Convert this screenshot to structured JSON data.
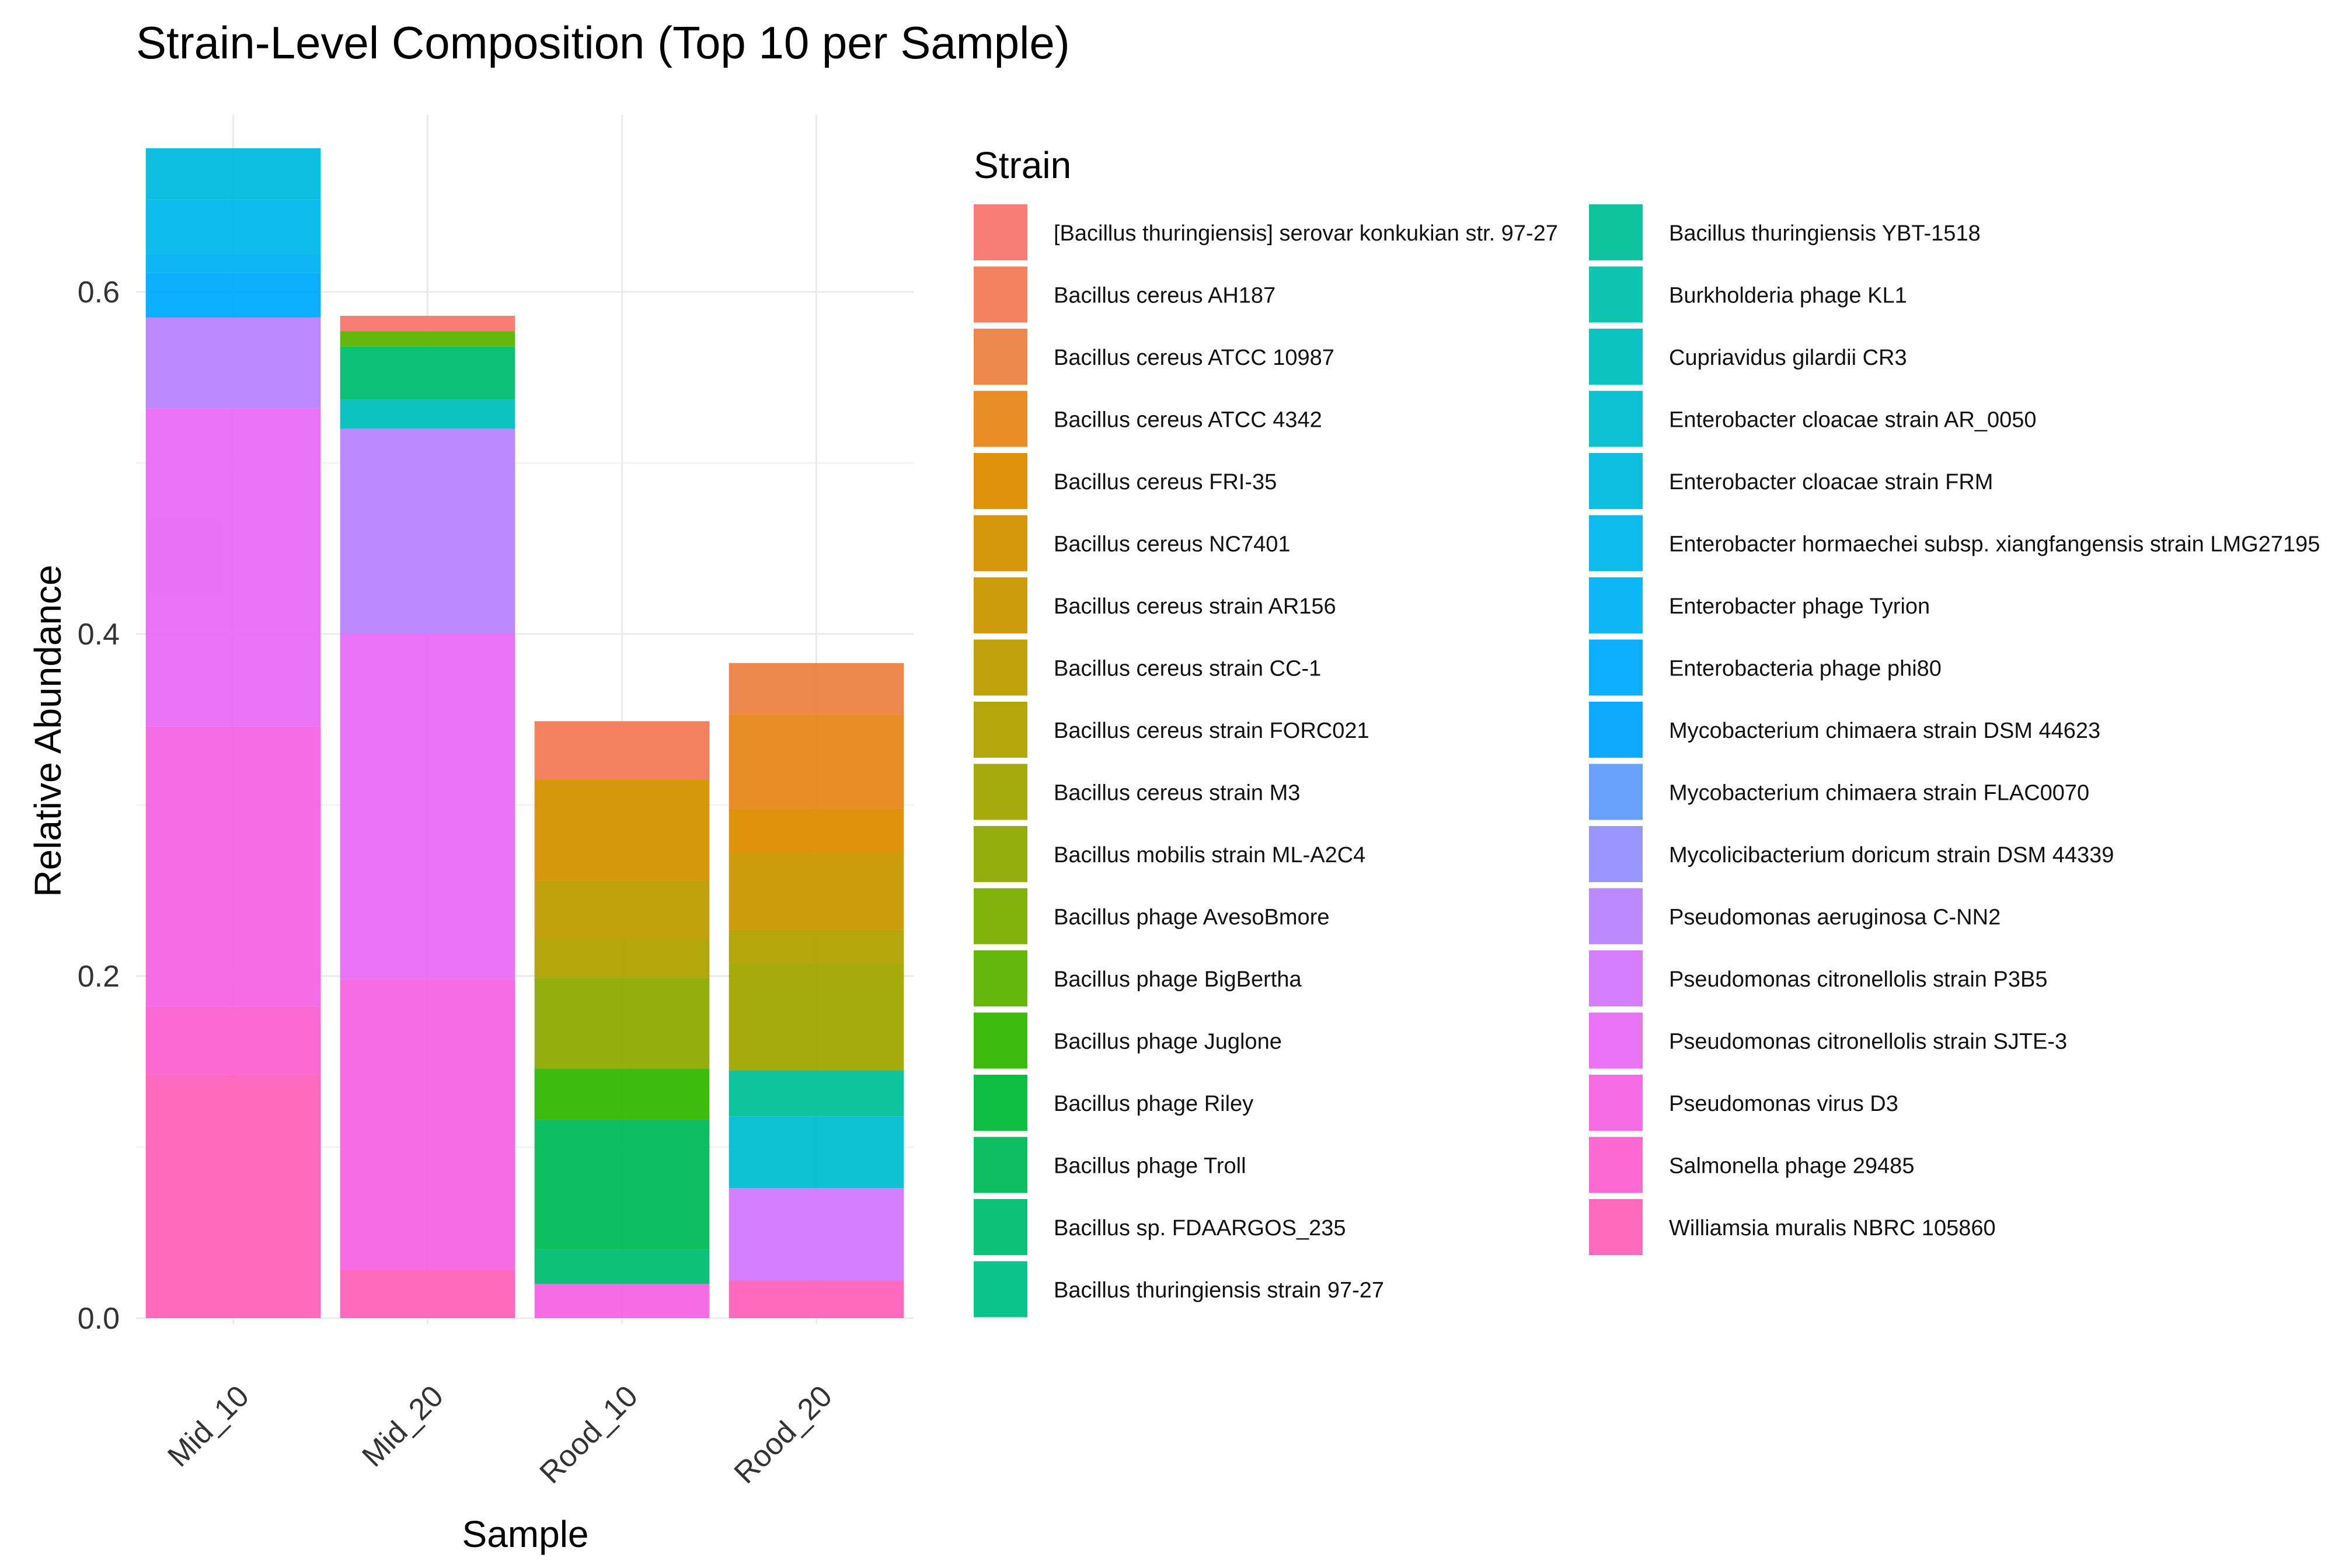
{
  "chart_data": {
    "type": "bar",
    "stacked": true,
    "title": "Strain-Level Composition (Top 10 per Sample)",
    "xlabel": "Sample",
    "ylabel": "Relative Abundance",
    "ylim": [
      0,
      0.6831
    ],
    "yticks": [
      0.0,
      0.2,
      0.4,
      0.6
    ],
    "ytick_labels": [
      "0.0",
      "0.2",
      "0.4",
      "0.6"
    ],
    "grid": true,
    "legend_title": "Strain",
    "legend_position": "right",
    "categories": [
      "Mid_10",
      "Mid_20",
      "Rood_10",
      "Rood_20"
    ],
    "series": [
      {
        "name": "[Bacillus thuringiensis] serovar konkukian str. 97-27",
        "color": "#F8766D",
        "values": [
          0,
          0.009,
          0,
          0
        ]
      },
      {
        "name": "Bacillus cereus AH187",
        "color": "#F37B59",
        "values": [
          0,
          0,
          0.034,
          0
        ]
      },
      {
        "name": "Bacillus cereus ATCC 10987",
        "color": "#ED8141",
        "values": [
          0,
          0,
          0,
          0.03
        ]
      },
      {
        "name": "Bacillus cereus ATCC 4342",
        "color": "#E7861B",
        "values": [
          0,
          0,
          0,
          0.055
        ]
      },
      {
        "name": "Bacillus cereus FRI-35",
        "color": "#DF8C00",
        "values": [
          0,
          0,
          0,
          0.026
        ]
      },
      {
        "name": "Bacillus cereus NC7401",
        "color": "#D59100",
        "values": [
          0,
          0,
          0.059,
          0
        ]
      },
      {
        "name": "Bacillus cereus strain AR156",
        "color": "#CA9700",
        "values": [
          0,
          0,
          0,
          0.045
        ]
      },
      {
        "name": "Bacillus cereus strain CC-1",
        "color": "#BE9C00",
        "values": [
          0,
          0,
          0.034,
          0
        ]
      },
      {
        "name": "Bacillus cereus strain FORC021",
        "color": "#B0A100",
        "values": [
          0,
          0,
          0.023,
          0.02
        ]
      },
      {
        "name": "Bacillus cereus strain M3",
        "color": "#A0A600",
        "values": [
          0,
          0,
          0,
          0.062
        ]
      },
      {
        "name": "Bacillus mobilis strain ML-A2C4",
        "color": "#8EAB00",
        "values": [
          0,
          0,
          0.053,
          0
        ]
      },
      {
        "name": "Bacillus phage AvesoBmore",
        "color": "#7AAF00",
        "values": [
          0,
          0,
          0,
          0
        ]
      },
      {
        "name": "Bacillus phage BigBertha",
        "color": "#5EB300",
        "values": [
          0,
          0.009,
          0,
          0
        ]
      },
      {
        "name": "Bacillus phage Juglone",
        "color": "#33B600",
        "values": [
          0,
          0,
          0.03,
          0
        ]
      },
      {
        "name": "Bacillus phage Riley",
        "color": "#00BA38",
        "values": [
          0,
          0,
          0,
          0
        ]
      },
      {
        "name": "Bacillus phage Troll",
        "color": "#00BC59",
        "values": [
          0,
          0,
          0.076,
          0
        ]
      },
      {
        "name": "Bacillus sp. FDAARGOS_235",
        "color": "#00BE70",
        "values": [
          0,
          0.031,
          0.02,
          0
        ]
      },
      {
        "name": "Bacillus thuringiensis strain 97-27",
        "color": "#00C086",
        "values": [
          0,
          0,
          0,
          0
        ]
      },
      {
        "name": "Bacillus thuringiensis YBT-1518",
        "color": "#00C19A",
        "values": [
          0,
          0,
          0,
          0.027
        ]
      },
      {
        "name": "Burkholderia phage KL1",
        "color": "#00C1AD",
        "values": [
          0,
          0,
          0,
          0
        ]
      },
      {
        "name": "Cupriavidus gilardii CR3",
        "color": "#00C0BF",
        "values": [
          0,
          0.017,
          0,
          0
        ]
      },
      {
        "name": "Enterobacter cloacae strain AR_0050",
        "color": "#00BED0",
        "values": [
          0,
          0,
          0,
          0.042
        ]
      },
      {
        "name": "Enterobacter cloacae strain FRM",
        "color": "#00BBDF",
        "values": [
          0.03,
          0,
          0,
          0
        ]
      },
      {
        "name": "Enterobacter hormaechei subsp. xiangfangensis strain LMG27195",
        "color": "#00B7EB",
        "values": [
          0.032,
          0,
          0,
          0
        ]
      },
      {
        "name": "Enterobacter phage Tyrion",
        "color": "#00B2F3",
        "values": [
          0.011,
          0,
          0,
          0
        ]
      },
      {
        "name": "Enterobacteria phage phi80",
        "color": "#00ABFD",
        "values": [
          0.026,
          0,
          0,
          0
        ]
      },
      {
        "name": "Mycobacterium chimaera strain DSM 44623",
        "color": "#00A5FF",
        "values": [
          0,
          0,
          0,
          0
        ]
      },
      {
        "name": "Mycobacterium chimaera strain FLAC0070",
        "color": "#619CFF",
        "values": [
          0,
          0,
          0,
          0
        ]
      },
      {
        "name": "Mycolicibacterium doricum strain DSM 44339",
        "color": "#9590FF",
        "values": [
          0,
          0,
          0,
          0
        ]
      },
      {
        "name": "Pseudomonas aeruginosa C-NN2",
        "color": "#B983FF",
        "values": [
          0.053,
          0.12,
          0,
          0
        ]
      },
      {
        "name": "Pseudomonas citronellolis strain P3B5",
        "color": "#D377FF",
        "values": [
          0,
          0,
          0,
          0.054
        ]
      },
      {
        "name": "Pseudomonas citronellolis strain SJTE-3",
        "color": "#E76BF3",
        "values": [
          0.186,
          0.202,
          0,
          0
        ]
      },
      {
        "name": "Pseudomonas virus D3",
        "color": "#F564E3",
        "values": [
          0.164,
          0.17,
          0.02,
          0
        ]
      },
      {
        "name": "Salmonella phage 29485",
        "color": "#FD61D1",
        "values": [
          0.04,
          0,
          0,
          0
        ]
      },
      {
        "name": "Williamsia muralis NBRC 105860",
        "color": "#FF62BC",
        "values": [
          0.142,
          0.028,
          0,
          0.022
        ]
      }
    ]
  }
}
